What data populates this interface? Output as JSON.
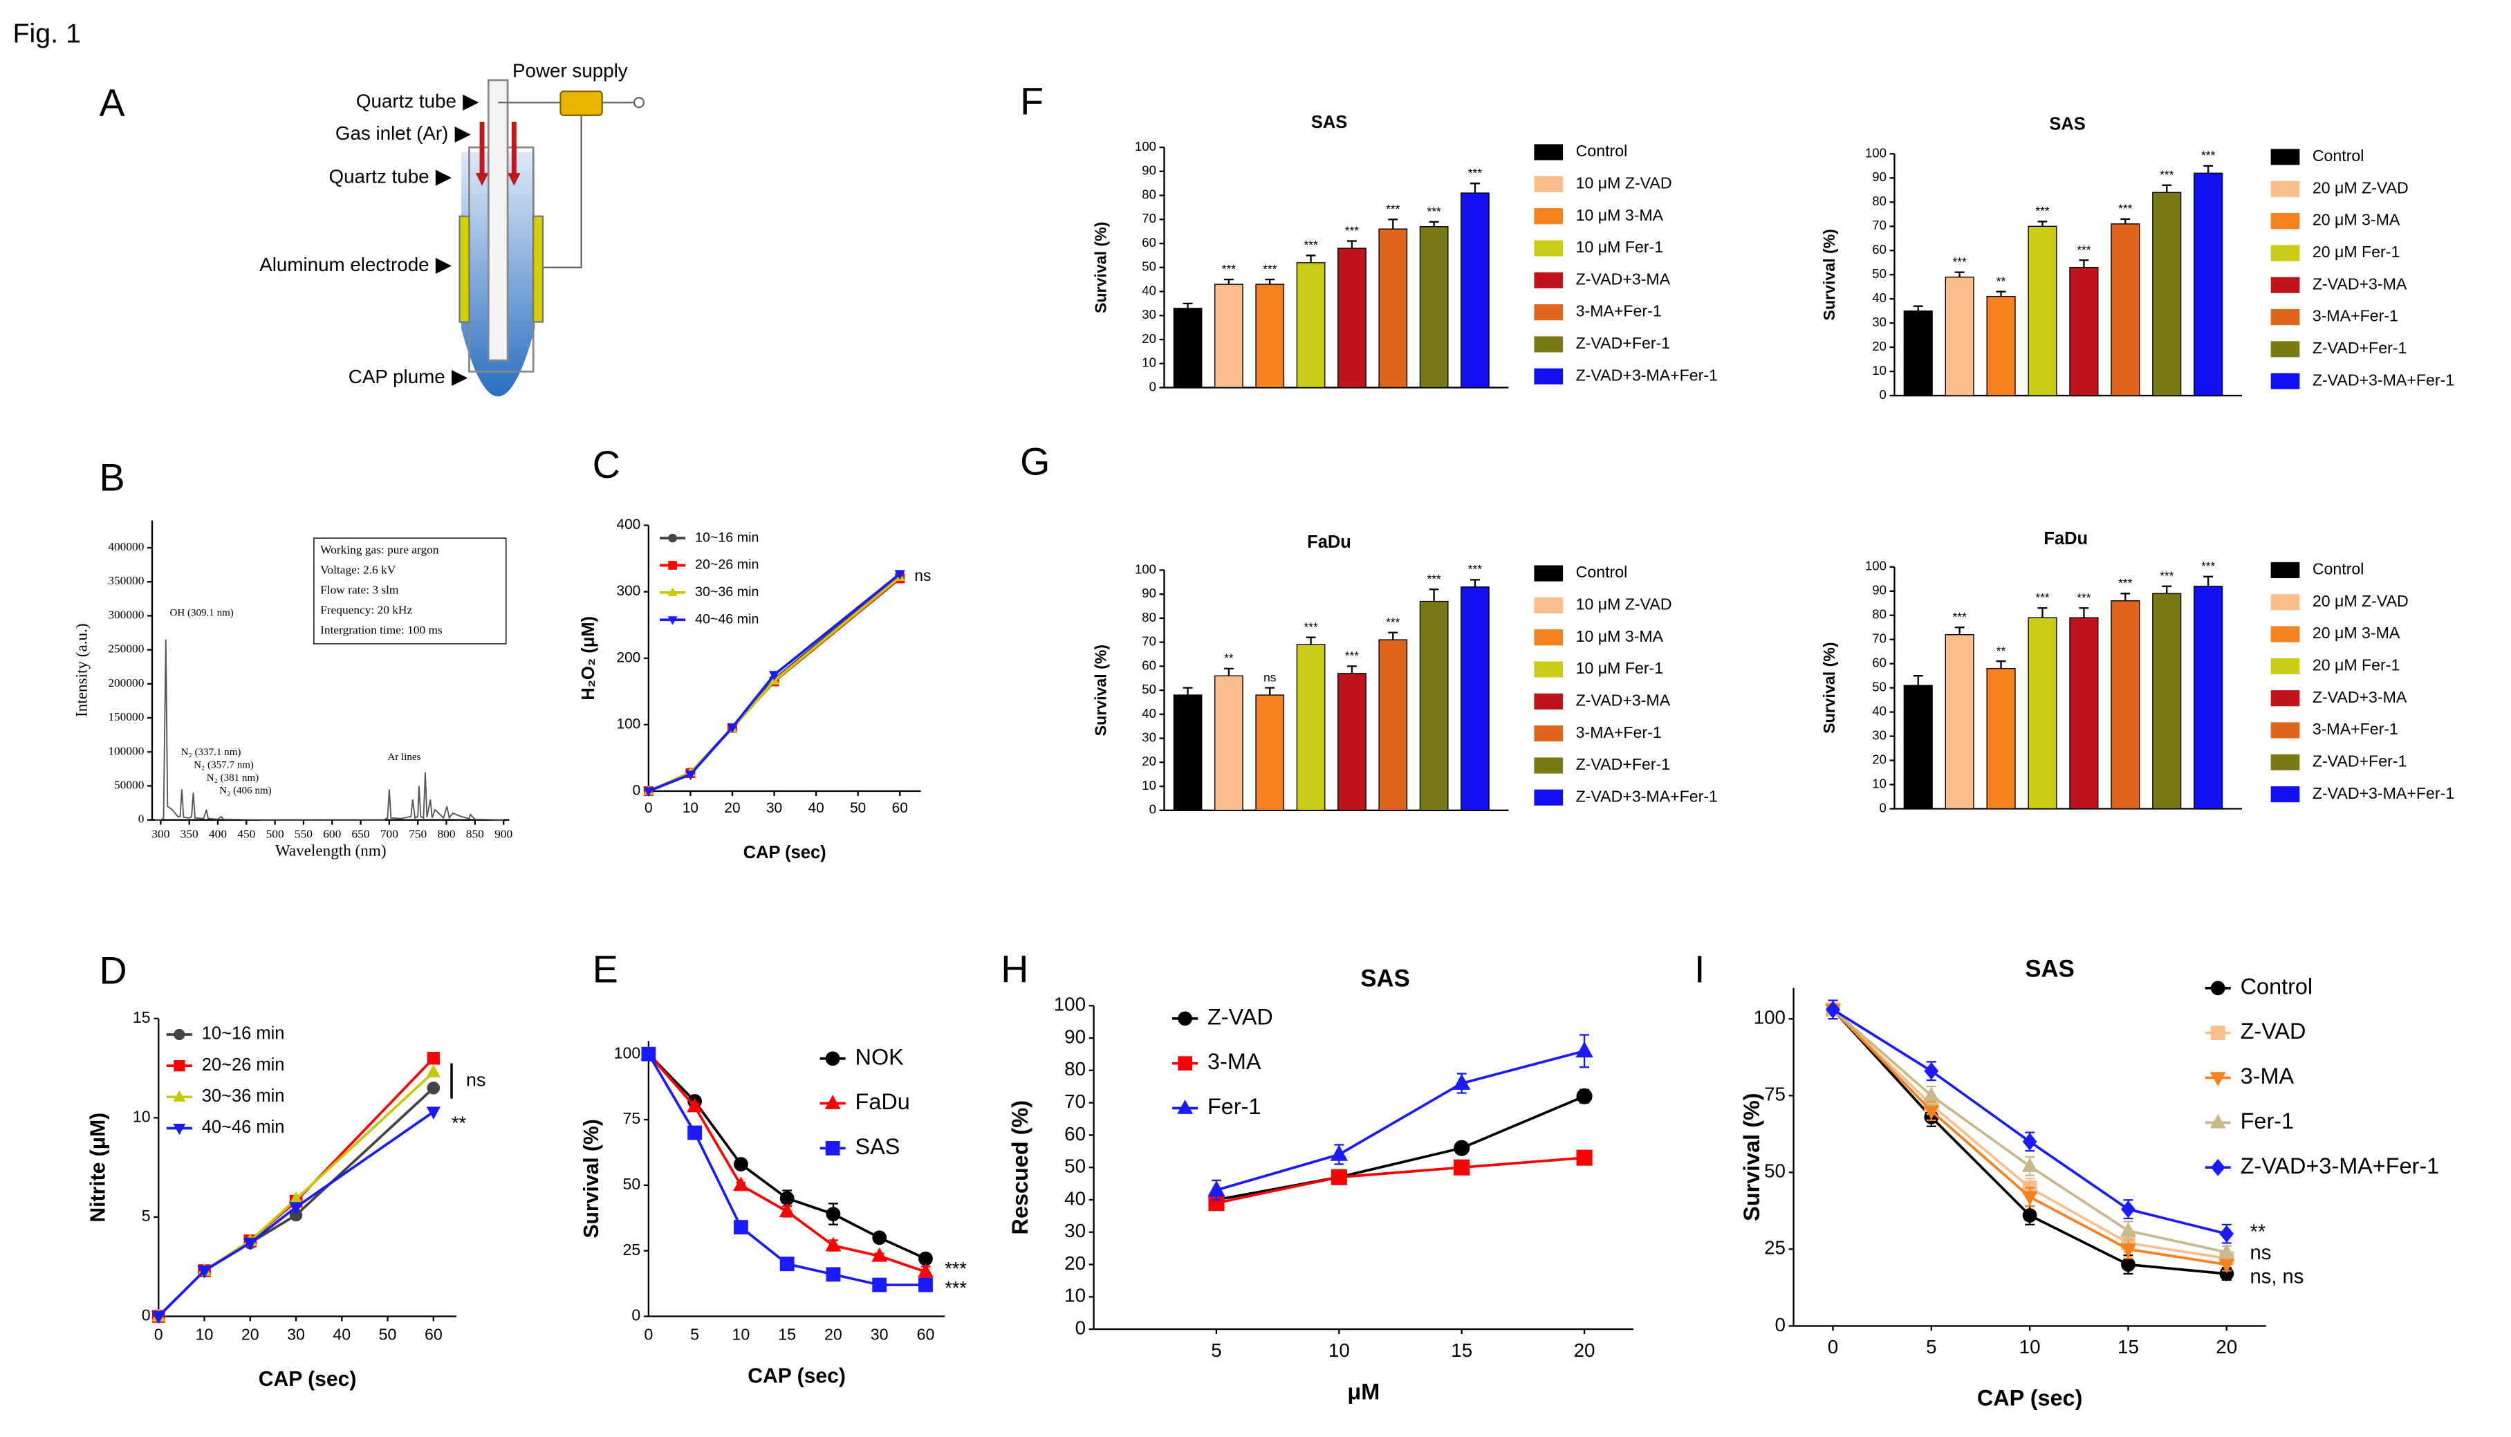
{
  "figure": {
    "label": "Fig. 1"
  },
  "diagram": {
    "panel": "A",
    "labels": [
      "Quartz tube",
      "Gas inlet (Ar)",
      "Quartz tube",
      "Aluminum electrode",
      "CAP plume",
      "Power supply"
    ]
  },
  "chart_data": [
    {
      "type": "spectrum",
      "panel": "B",
      "x_label": "Wavelength (nm)",
      "y_label": "Intensity (a.u.)",
      "color": "#555555",
      "x": [
        290,
        300,
        305,
        309,
        312,
        320,
        330,
        334,
        337,
        340,
        350,
        354,
        357,
        360,
        375,
        380,
        383,
        400,
        406,
        410,
        500,
        600,
        690,
        697,
        700,
        703,
        720,
        738,
        741,
        745,
        750,
        752,
        755,
        760,
        763,
        766,
        772,
        775,
        780,
        795,
        801,
        805,
        811,
        826,
        840,
        842,
        850,
        900
      ],
      "values": [
        0,
        0,
        3000,
        265000,
        20000,
        15000,
        5000,
        5000,
        45000,
        4000,
        3000,
        5000,
        40000,
        3000,
        2000,
        15000,
        2000,
        1000,
        5000,
        1000,
        0,
        0,
        0,
        3000,
        45000,
        3000,
        2000,
        5000,
        30000,
        3000,
        5000,
        50000,
        5000,
        3000,
        70000,
        4000,
        30000,
        3000,
        15000,
        3000,
        20000,
        3000,
        10000,
        5000,
        2000,
        8000,
        1000,
        0
      ],
      "xlim": [
        285,
        910
      ],
      "xticks": [
        300,
        350,
        400,
        450,
        500,
        550,
        600,
        650,
        700,
        750,
        800,
        850,
        900
      ],
      "ylim": [
        0,
        440000
      ],
      "yticks": [
        0,
        50000,
        100000,
        150000,
        200000,
        250000,
        300000,
        350000,
        400000
      ],
      "annotations": [
        "OH (309.1 nm)",
        "N₂ (337.1 nm)",
        "N₂ (357.7 nm)",
        "N₂ (381 nm)",
        "N₂ (406 nm)",
        "Ar lines"
      ],
      "info_box": [
        "Working gas: pure argon",
        "Voltage: 2.6 kV",
        "Flow rate: 3 slm",
        "Frequency: 20 kHz",
        "Intergration time: 100 ms"
      ]
    },
    {
      "type": "line",
      "panel": "C",
      "x_label": "CAP (sec)",
      "y_label": "H₂O₂ (μM)",
      "x": [
        0,
        10,
        20,
        30,
        60
      ],
      "xlim": [
        0,
        65
      ],
      "xticks": [
        0,
        10,
        20,
        30,
        40,
        50,
        60
      ],
      "ylim": [
        0,
        400
      ],
      "yticks": [
        0,
        100,
        200,
        300,
        400
      ],
      "series": [
        {
          "name": "10~16 min",
          "color": "#444444",
          "marker": "circle",
          "values": [
            0,
            28,
            95,
            168,
            325
          ]
        },
        {
          "name": "20~26 min",
          "color": "#ff0000",
          "marker": "square",
          "values": [
            0,
            27,
            95,
            165,
            320
          ]
        },
        {
          "name": "30~36 min",
          "color": "#c8c800",
          "marker": "triangle-up",
          "values": [
            0,
            28,
            94,
            166,
            322
          ]
        },
        {
          "name": "40~46 min",
          "color": "#1a1aff",
          "marker": "triangle-down",
          "values": [
            0,
            25,
            96,
            175,
            327
          ]
        }
      ],
      "annotations": [
        "ns"
      ]
    },
    {
      "type": "line",
      "panel": "D",
      "x_label": "CAP (sec)",
      "y_label": "Nitrite (μM)",
      "x": [
        0,
        10,
        20,
        30,
        60
      ],
      "xlim": [
        0,
        65
      ],
      "xticks": [
        0,
        10,
        20,
        30,
        40,
        50,
        60
      ],
      "ylim": [
        0,
        15
      ],
      "yticks": [
        0,
        5,
        10,
        15
      ],
      "series": [
        {
          "name": "10~16 min",
          "color": "#444444",
          "marker": "circle",
          "values": [
            0,
            2.3,
            3.7,
            5.1,
            11.5
          ]
        },
        {
          "name": "20~26 min",
          "color": "#ff0000",
          "marker": "square",
          "values": [
            0,
            2.3,
            3.8,
            5.8,
            13
          ]
        },
        {
          "name": "30~36 min",
          "color": "#c8c800",
          "marker": "triangle-up",
          "values": [
            0,
            2.3,
            3.8,
            5.9,
            12.3
          ]
        },
        {
          "name": "40~46 min",
          "color": "#1a1aff",
          "marker": "triangle-down",
          "values": [
            0,
            2.3,
            3.7,
            5.5,
            10.3
          ]
        }
      ],
      "annotations": [
        "ns",
        "**"
      ]
    },
    {
      "type": "line",
      "panel": "E",
      "x_label": "CAP (sec)",
      "y_label": "Survival (%)",
      "categories": [
        "0",
        "5",
        "10",
        "15",
        "20",
        "30",
        "60"
      ],
      "ylim": [
        0,
        105
      ],
      "yticks": [
        0,
        25,
        50,
        75,
        100
      ],
      "series": [
        {
          "name": "NOK",
          "color": "#000000",
          "marker": "circle",
          "values": [
            100,
            82,
            58,
            45,
            39,
            30,
            22
          ],
          "errors": [
            0,
            1,
            1,
            3,
            4,
            1,
            1
          ]
        },
        {
          "name": "FaDu",
          "color": "#ff0000",
          "marker": "triangle-up",
          "values": [
            100,
            80,
            50,
            40,
            27,
            23,
            17
          ],
          "errors": [
            0,
            1,
            1,
            2,
            2,
            1,
            2
          ]
        },
        {
          "name": "SAS",
          "color": "#1a1aff",
          "marker": "square",
          "values": [
            100,
            70,
            34,
            20,
            16,
            12,
            12
          ],
          "errors": [
            0,
            1,
            1,
            1,
            1,
            1,
            1
          ]
        }
      ],
      "annotations": [
        "***",
        "***"
      ]
    },
    {
      "type": "bar",
      "panel": "F",
      "title": "SAS",
      "y_label": "Survival (%)",
      "categories": [
        "Control",
        "10 μM Z-VAD",
        "10 μM 3-MA",
        "10 μM Fer-1",
        "Z-VAD+3-MA",
        "3-MA+Fer-1",
        "Z-VAD+Fer-1",
        "Z-VAD+3-MA+Fer-1"
      ],
      "colors": [
        "#000000",
        "#f9be8c",
        "#f5821f",
        "#c8cc14",
        "#c0141c",
        "#e0641a",
        "#7a7a14",
        "#1010f0"
      ],
      "values": [
        33,
        43,
        43,
        52,
        58,
        66,
        67,
        81
      ],
      "errors": [
        2,
        2,
        2,
        3,
        3,
        4,
        2,
        4
      ],
      "significance": [
        null,
        "***",
        "***",
        "***",
        "***",
        "***",
        "***",
        "***"
      ],
      "ylim": [
        0,
        100
      ],
      "yticks": [
        0,
        10,
        20,
        30,
        40,
        50,
        60,
        70,
        80,
        90,
        100
      ]
    },
    {
      "type": "bar",
      "title": "SAS",
      "y_label": "Survival (%)",
      "categories": [
        "Control",
        "20 μM Z-VAD",
        "20 μM 3-MA",
        "20 μM Fer-1",
        "Z-VAD+3-MA",
        "3-MA+Fer-1",
        "Z-VAD+Fer-1",
        "Z-VAD+3-MA+Fer-1"
      ],
      "colors": [
        "#000000",
        "#f9be8c",
        "#f5821f",
        "#c8cc14",
        "#c0141c",
        "#e0641a",
        "#7a7a14",
        "#1010f0"
      ],
      "values": [
        35,
        49,
        41,
        70,
        53,
        71,
        84,
        92
      ],
      "errors": [
        2,
        2,
        2,
        2,
        3,
        2,
        3,
        3
      ],
      "significance": [
        null,
        "***",
        "**",
        "***",
        "***",
        "***",
        "***",
        "***"
      ],
      "ylim": [
        0,
        100
      ],
      "yticks": [
        0,
        10,
        20,
        30,
        40,
        50,
        60,
        70,
        80,
        90,
        100
      ]
    },
    {
      "type": "bar",
      "panel": "G",
      "title": "FaDu",
      "y_label": "Survival (%)",
      "categories": [
        "Control",
        "10 μM Z-VAD",
        "10 μM 3-MA",
        "10 μM Fer-1",
        "Z-VAD+3-MA",
        "3-MA+Fer-1",
        "Z-VAD+Fer-1",
        "Z-VAD+3-MA+Fer-1"
      ],
      "colors": [
        "#000000",
        "#f9be8c",
        "#f5821f",
        "#c8cc14",
        "#c0141c",
        "#e0641a",
        "#7a7a14",
        "#1010f0"
      ],
      "values": [
        48,
        56,
        48,
        69,
        57,
        71,
        87,
        93
      ],
      "errors": [
        3,
        3,
        3,
        3,
        3,
        3,
        5,
        3
      ],
      "significance": [
        null,
        "**",
        "ns",
        "***",
        "***",
        "***",
        "***",
        "***"
      ],
      "ylim": [
        0,
        100
      ],
      "yticks": [
        0,
        10,
        20,
        30,
        40,
        50,
        60,
        70,
        80,
        90,
        100
      ]
    },
    {
      "type": "bar",
      "title": "FaDu",
      "y_label": "Survival (%)",
      "categories": [
        "Control",
        "20 μM Z-VAD",
        "20 μM 3-MA",
        "20 μM Fer-1",
        "Z-VAD+3-MA",
        "3-MA+Fer-1",
        "Z-VAD+Fer-1",
        "Z-VAD+3-MA+Fer-1"
      ],
      "colors": [
        "#000000",
        "#f9be8c",
        "#f5821f",
        "#c8cc14",
        "#c0141c",
        "#e0641a",
        "#7a7a14",
        "#1010f0"
      ],
      "values": [
        51,
        72,
        58,
        79,
        79,
        86,
        89,
        92
      ],
      "errors": [
        4,
        3,
        3,
        4,
        4,
        3,
        3,
        4
      ],
      "significance": [
        null,
        "***",
        "**",
        "***",
        "***",
        "***",
        "***",
        "***"
      ],
      "ylim": [
        0,
        100
      ],
      "yticks": [
        0,
        10,
        20,
        30,
        40,
        50,
        60,
        70,
        80,
        90,
        100
      ]
    },
    {
      "type": "line",
      "panel": "H",
      "title": "SAS",
      "x_label": "μM",
      "y_label": "Rescued (%)",
      "x": [
        5,
        10,
        15,
        20
      ],
      "xlim": [
        0,
        22
      ],
      "xticks": [
        5,
        10,
        15,
        20
      ],
      "ylim": [
        0,
        100
      ],
      "yticks": [
        0,
        10,
        20,
        30,
        40,
        50,
        60,
        70,
        80,
        90,
        100
      ],
      "series": [
        {
          "name": "Z-VAD",
          "color": "#000000",
          "marker": "circle",
          "values": [
            40,
            47,
            56,
            72
          ],
          "errors": [
            2,
            1,
            1,
            2
          ]
        },
        {
          "name": "3-MA",
          "color": "#ff0000",
          "marker": "square",
          "values": [
            39,
            47,
            50,
            53
          ],
          "errors": [
            1,
            1,
            2,
            2
          ]
        },
        {
          "name": "Fer-1",
          "color": "#1a1aff",
          "marker": "triangle-up",
          "values": [
            43,
            54,
            76,
            86
          ],
          "errors": [
            3,
            3,
            3,
            5
          ]
        }
      ]
    },
    {
      "type": "line",
      "panel": "I",
      "title": "SAS",
      "x_label": "CAP (sec)",
      "y_label": "Survival (%)",
      "x": [
        0,
        5,
        10,
        15,
        20
      ],
      "xlim": [
        -2,
        22
      ],
      "xticks": [
        0,
        5,
        10,
        15,
        20
      ],
      "ylim": [
        0,
        110
      ],
      "yticks": [
        0,
        25,
        50,
        75,
        100
      ],
      "series": [
        {
          "name": "Control",
          "color": "#000000",
          "marker": "circle",
          "values": [
            103,
            68,
            36,
            20,
            17
          ],
          "errors": [
            3,
            3,
            3,
            3,
            2
          ]
        },
        {
          "name": "Z-VAD",
          "color": "#f9be8c",
          "marker": "square",
          "values": [
            103,
            72,
            45,
            27,
            22
          ],
          "errors": [
            3,
            3,
            3,
            3,
            2
          ]
        },
        {
          "name": "3-MA",
          "color": "#f5821f",
          "marker": "triangle-down",
          "values": [
            103,
            70,
            42,
            25,
            20
          ],
          "errors": [
            3,
            3,
            3,
            3,
            2
          ]
        },
        {
          "name": "Fer-1",
          "color": "#c8b88c",
          "marker": "triangle-up",
          "values": [
            103,
            75,
            52,
            31,
            24
          ],
          "errors": [
            3,
            3,
            3,
            3,
            2
          ]
        },
        {
          "name": "Z-VAD+3-MA+Fer-1",
          "color": "#1a1aff",
          "marker": "diamond",
          "values": [
            103,
            83,
            60,
            38,
            30
          ],
          "errors": [
            3,
            3,
            3,
            3,
            3
          ]
        }
      ],
      "annotations": [
        "**",
        "ns",
        "ns, ns"
      ]
    }
  ]
}
